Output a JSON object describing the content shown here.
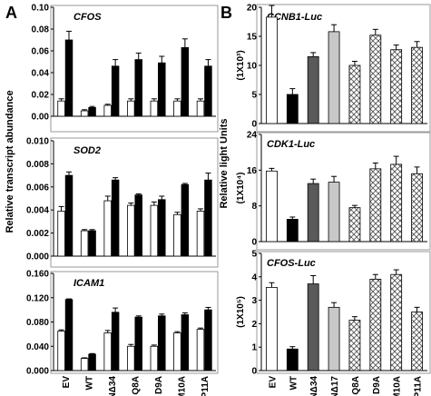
{
  "figure": {
    "panel_a_label": "A",
    "panel_b_label": "B",
    "panel_a_ylabel": "Relative transcript abundance",
    "panel_b_ylabel": "Relative light Units",
    "colors": {
      "white": "#ffffff",
      "black": "#000000",
      "dark_gray": "#5a5a5a",
      "light_gray": "#c8c8c8",
      "frame": "#9a9a9a"
    }
  },
  "chart_data": [
    {
      "type": "bar",
      "panel": "A",
      "title": "CFOS",
      "categories": [
        "EV",
        "WT",
        "NΔ34",
        "Q8A",
        "D9A",
        "M10A",
        "P11A"
      ],
      "ylim": [
        0,
        0.1
      ],
      "yticks": [
        "0.00",
        "0.02",
        "0.04",
        "0.06",
        "0.08",
        "0.10"
      ],
      "grid": false,
      "series": [
        {
          "fill": "white",
          "values": [
            0.014,
            0.005,
            0.01,
            0.014,
            0.014,
            0.014,
            0.014
          ],
          "errors": [
            0.002,
            0.001,
            0.001,
            0.002,
            0.002,
            0.002,
            0.002
          ]
        },
        {
          "fill": "black",
          "values": [
            0.07,
            0.008,
            0.046,
            0.052,
            0.049,
            0.063,
            0.046
          ],
          "errors": [
            0.008,
            0.001,
            0.006,
            0.006,
            0.006,
            0.008,
            0.006
          ]
        }
      ]
    },
    {
      "type": "bar",
      "panel": "A",
      "title": "SOD2",
      "categories": [
        "EV",
        "WT",
        "NΔ34",
        "Q8A",
        "D9A",
        "M10A",
        "P11A"
      ],
      "ylim": [
        0,
        0.01
      ],
      "yticks": [
        "0.000",
        "0.002",
        "0.004",
        "0.006",
        "0.008",
        "0.010"
      ],
      "grid": false,
      "series": [
        {
          "fill": "white",
          "values": [
            0.0039,
            0.0022,
            0.0048,
            0.0044,
            0.0044,
            0.0036,
            0.0039
          ],
          "errors": [
            0.0004,
            0.0001,
            0.0004,
            0.0002,
            0.0003,
            0.0002,
            0.0002
          ]
        },
        {
          "fill": "black",
          "values": [
            0.007,
            0.0022,
            0.0066,
            0.0053,
            0.0049,
            0.0062,
            0.0066
          ],
          "errors": [
            0.0003,
            0.0001,
            0.0002,
            0.0001,
            0.0003,
            0.0001,
            0.0006
          ]
        }
      ]
    },
    {
      "type": "bar",
      "panel": "A",
      "title": "ICAM1",
      "categories": [
        "EV",
        "WT",
        "NΔ34",
        "Q8A",
        "D9A",
        "M10A",
        "P11A"
      ],
      "ylim": [
        0,
        0.16
      ],
      "yticks": [
        "0.000",
        "0.040",
        "0.080",
        "0.120",
        "0.160"
      ],
      "grid": false,
      "series": [
        {
          "fill": "white",
          "values": [
            0.065,
            0.02,
            0.062,
            0.04,
            0.04,
            0.062,
            0.068
          ],
          "errors": [
            0.002,
            0.001,
            0.004,
            0.003,
            0.002,
            0.002,
            0.002
          ]
        },
        {
          "fill": "black",
          "values": [
            0.117,
            0.027,
            0.096,
            0.088,
            0.09,
            0.092,
            0.1
          ],
          "errors": [
            0.001,
            0.001,
            0.007,
            0.002,
            0.003,
            0.003,
            0.004
          ]
        }
      ]
    },
    {
      "type": "bar",
      "panel": "B",
      "title": "CCNB1-Luc",
      "ylabel": "(1X10³)",
      "categories": [
        "EV",
        "WT",
        "NΔ34",
        "NΔ17",
        "Q8A",
        "D9A",
        "M10A",
        "P11A"
      ],
      "ylim": [
        0,
        20
      ],
      "yticks": [
        "0",
        "5",
        "10",
        "15",
        "20"
      ],
      "grid": false,
      "fills": [
        "white",
        "black",
        "dark_gray",
        "light_gray",
        "hatch",
        "hatch",
        "hatch",
        "hatch"
      ],
      "values": [
        18.3,
        5.0,
        11.5,
        15.8,
        10.0,
        15.2,
        12.7,
        13.1
      ],
      "errors": [
        2.0,
        1.0,
        0.7,
        1.2,
        0.7,
        1.0,
        0.8,
        1.0
      ]
    },
    {
      "type": "bar",
      "panel": "B",
      "title": "CDK1-Luc",
      "ylabel": "(1X10⁴)",
      "categories": [
        "EV",
        "WT",
        "NΔ34",
        "NΔ17",
        "Q8A",
        "D9A",
        "M10A",
        "P11A"
      ],
      "ylim": [
        0,
        24
      ],
      "yticks": [
        "0",
        "8",
        "16",
        "24"
      ],
      "grid": false,
      "fills": [
        "white",
        "black",
        "dark_gray",
        "light_gray",
        "hatch",
        "hatch",
        "hatch",
        "hatch"
      ],
      "values": [
        15.8,
        5.0,
        13.0,
        13.3,
        7.6,
        16.3,
        17.3,
        15.2
      ],
      "errors": [
        0.6,
        0.5,
        1.0,
        1.3,
        0.5,
        1.3,
        1.8,
        1.5
      ]
    },
    {
      "type": "bar",
      "panel": "B",
      "title": "CFOS-Luc",
      "ylabel": "(1X10⁵)",
      "categories": [
        "EV",
        "WT",
        "NΔ34",
        "NΔ17",
        "Q8A",
        "D9A",
        "M10A",
        "P11A"
      ],
      "ylim": [
        0,
        5
      ],
      "yticks": [
        "0",
        "1",
        "2",
        "3",
        "4",
        "5"
      ],
      "grid": false,
      "fills": [
        "white",
        "black",
        "dark_gray",
        "light_gray",
        "hatch",
        "hatch",
        "hatch",
        "hatch"
      ],
      "values": [
        3.55,
        0.92,
        3.7,
        2.7,
        2.15,
        3.9,
        4.1,
        2.5
      ],
      "errors": [
        0.2,
        0.1,
        0.35,
        0.2,
        0.15,
        0.2,
        0.2,
        0.2
      ]
    }
  ]
}
